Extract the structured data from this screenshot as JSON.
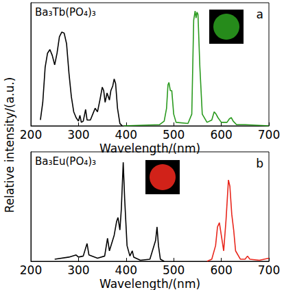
{
  "y_label": "Relative intensity/(a.u.)",
  "chart_data": [
    {
      "type": "line",
      "title": "Ba₃Tb(PO₄)₃",
      "label": "a",
      "xlabel": "Wavelength/(nm)",
      "xlim": [
        200,
        700
      ],
      "xticks": [
        200,
        300,
        400,
        500,
        600,
        700
      ],
      "ylim": [
        0,
        1.05
      ],
      "tick_labels": "x",
      "series": [
        {
          "color": "#000000",
          "x": [
            220,
            225,
            230,
            235,
            240,
            245,
            250,
            255,
            260,
            265,
            270,
            275,
            280,
            285,
            290,
            295,
            300,
            303,
            306,
            310,
            315,
            318,
            325,
            330,
            335,
            340,
            345,
            350,
            353,
            356,
            360,
            365,
            368,
            372,
            375,
            378,
            382,
            387,
            392
          ],
          "values": [
            0.05,
            0.2,
            0.5,
            0.62,
            0.65,
            0.6,
            0.52,
            0.62,
            0.76,
            0.8,
            0.79,
            0.7,
            0.45,
            0.25,
            0.12,
            0.07,
            0.04,
            0.09,
            0.03,
            0.04,
            0.14,
            0.05,
            0.05,
            0.1,
            0.15,
            0.12,
            0.22,
            0.33,
            0.3,
            0.2,
            0.28,
            0.22,
            0.3,
            0.34,
            0.4,
            0.36,
            0.15,
            0.02,
            0
          ]
        },
        {
          "color": "#2a9a1e",
          "x": [
            395,
            470,
            480,
            485,
            488,
            490,
            493,
            496,
            500,
            505,
            530,
            538,
            542,
            545,
            547,
            549,
            551,
            555,
            560,
            570,
            580,
            585,
            589,
            593,
            600,
            612,
            617,
            621,
            625,
            632,
            650,
            700
          ],
          "values": [
            0,
            0.01,
            0.04,
            0.15,
            0.35,
            0.37,
            0.3,
            0.3,
            0.1,
            0.03,
            0.02,
            0.1,
            0.9,
            0.98,
            0.92,
            0.97,
            0.95,
            0.5,
            0.1,
            0.03,
            0.05,
            0.12,
            0.1,
            0.07,
            0.03,
            0.03,
            0.06,
            0.07,
            0.04,
            0.01,
            0.01,
            0
          ]
        }
      ]
    },
    {
      "type": "line",
      "title": "Ba₃Eu(PO₄)₃",
      "label": "b",
      "xlabel": "Wavelength/(nm)",
      "xlim": [
        200,
        700
      ],
      "xticks": [
        200,
        300,
        400,
        500,
        600,
        700
      ],
      "ylim": [
        0,
        1.05
      ],
      "tick_labels": "x",
      "series": [
        {
          "color": "#000000",
          "x": [
            250,
            280,
            295,
            300,
            310,
            318,
            322,
            340,
            355,
            361,
            365,
            375,
            380,
            383,
            387,
            390,
            394,
            397,
            402,
            408,
            413,
            416,
            430,
            450,
            462,
            465,
            468,
            472,
            480
          ],
          "values": [
            0.02,
            0.04,
            0.06,
            0.04,
            0.05,
            0.17,
            0.06,
            0.03,
            0.05,
            0.22,
            0.1,
            0.25,
            0.38,
            0.42,
            0.3,
            0.5,
            0.95,
            0.6,
            0.15,
            0.05,
            0.1,
            0.04,
            0.01,
            0.02,
            0.2,
            0.33,
            0.15,
            0.02,
            0
          ]
        },
        {
          "color": "#e8261c",
          "x": [
            570,
            580,
            588,
            592,
            596,
            600,
            605,
            610,
            615,
            618,
            622,
            626,
            630,
            640,
            650,
            655,
            660,
            680,
            700
          ],
          "values": [
            0,
            0.02,
            0.15,
            0.33,
            0.37,
            0.25,
            0.1,
            0.4,
            0.78,
            0.72,
            0.45,
            0.3,
            0.1,
            0.02,
            0.02,
            0.05,
            0.02,
            0.01,
            0.03
          ]
        }
      ]
    }
  ]
}
